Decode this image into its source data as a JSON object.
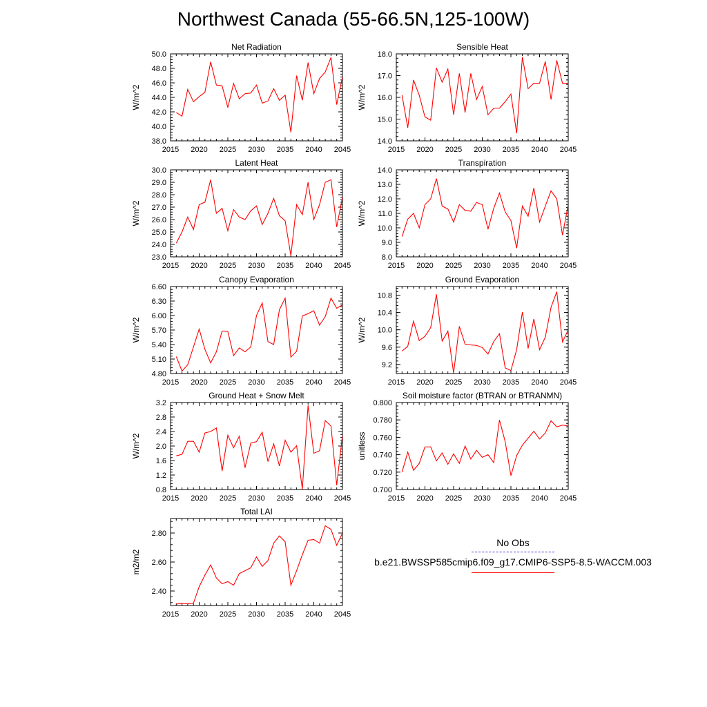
{
  "title": "Northwest Canada (55-66.5N,125-100W)",
  "legend": {
    "obs_label": "No Obs",
    "series_label": "b.e21.BWSSP585cmip6.f09_g17.CMIP6-SSP5-8.5-WACCM.003",
    "obs_color": "#2b2bd0",
    "series_color": "#ff0000"
  },
  "chart_data": [
    {
      "type": "line",
      "title": "Net Radiation",
      "ylabel": "W/m^2",
      "xlim": [
        2015,
        2045
      ],
      "ylim": [
        38.0,
        50.0
      ],
      "yticks": [
        "38.0",
        "40.0",
        "42.0",
        "44.0",
        "46.0",
        "48.0",
        "50.0"
      ],
      "xticks": [
        "2015",
        "2020",
        "2025",
        "2030",
        "2035",
        "2040",
        "2045"
      ],
      "x": [
        2016,
        2017,
        2018,
        2019,
        2020,
        2021,
        2022,
        2023,
        2024,
        2025,
        2026,
        2027,
        2028,
        2029,
        2030,
        2031,
        2032,
        2033,
        2034,
        2035,
        2036,
        2037,
        2038,
        2039,
        2040,
        2041,
        2042,
        2043,
        2044,
        2045
      ],
      "values": [
        41.9,
        41.4,
        45.1,
        43.4,
        44.1,
        44.7,
        48.9,
        45.7,
        45.6,
        42.6,
        45.9,
        43.8,
        44.5,
        44.6,
        45.7,
        43.2,
        43.5,
        45.2,
        43.6,
        44.3,
        39.2,
        47.0,
        43.6,
        48.8,
        44.5,
        46.6,
        47.5,
        49.5,
        43.0,
        46.8
      ],
      "color": "#ff0000"
    },
    {
      "type": "line",
      "title": "Sensible Heat",
      "ylabel": "W/m^2",
      "xlim": [
        2015,
        2045
      ],
      "ylim": [
        14.0,
        18.0
      ],
      "yticks": [
        "14.0",
        "15.0",
        "16.0",
        "17.0",
        "18.0"
      ],
      "xticks": [
        "2015",
        "2020",
        "2025",
        "2030",
        "2035",
        "2040",
        "2045"
      ],
      "x": [
        2016,
        2017,
        2018,
        2019,
        2020,
        2021,
        2022,
        2023,
        2024,
        2025,
        2026,
        2027,
        2028,
        2029,
        2030,
        2031,
        2032,
        2033,
        2034,
        2035,
        2036,
        2037,
        2038,
        2039,
        2040,
        2041,
        2042,
        2043,
        2044,
        2045
      ],
      "values": [
        16.1,
        14.6,
        16.8,
        16.1,
        15.1,
        14.95,
        17.35,
        16.7,
        17.3,
        15.2,
        17.1,
        15.3,
        17.1,
        15.9,
        16.5,
        15.2,
        15.5,
        15.5,
        15.8,
        16.15,
        14.35,
        17.85,
        16.4,
        16.65,
        16.65,
        17.65,
        15.9,
        17.7,
        16.65,
        16.65
      ],
      "color": "#ff0000"
    },
    {
      "type": "line",
      "title": "Latent Heat",
      "ylabel": "W/m^2",
      "xlim": [
        2015,
        2045
      ],
      "ylim": [
        23.0,
        30.0
      ],
      "yticks": [
        "23.0",
        "24.0",
        "25.0",
        "26.0",
        "27.0",
        "28.0",
        "29.0",
        "30.0"
      ],
      "xticks": [
        "2015",
        "2020",
        "2025",
        "2030",
        "2035",
        "2040",
        "2045"
      ],
      "x": [
        2016,
        2017,
        2018,
        2019,
        2020,
        2021,
        2022,
        2023,
        2024,
        2025,
        2026,
        2027,
        2028,
        2029,
        2030,
        2031,
        2032,
        2033,
        2034,
        2035,
        2036,
        2037,
        2038,
        2039,
        2040,
        2041,
        2042,
        2043,
        2044,
        2045
      ],
      "values": [
        24.1,
        25.0,
        26.2,
        25.2,
        27.2,
        27.4,
        29.2,
        26.5,
        26.9,
        25.1,
        26.8,
        26.2,
        26.0,
        26.7,
        27.1,
        25.6,
        26.5,
        27.7,
        26.3,
        25.9,
        23.1,
        27.2,
        26.4,
        29.0,
        26.0,
        27.2,
        29.0,
        29.2,
        25.4,
        27.8
      ],
      "color": "#ff0000"
    },
    {
      "type": "line",
      "title": "Transpiration",
      "ylabel": "W/m^2",
      "xlim": [
        2015,
        2045
      ],
      "ylim": [
        8.0,
        14.0
      ],
      "yticks": [
        "8.0",
        "9.0",
        "10.0",
        "11.0",
        "12.0",
        "13.0",
        "14.0"
      ],
      "xticks": [
        "2015",
        "2020",
        "2025",
        "2030",
        "2035",
        "2040",
        "2045"
      ],
      "x": [
        2016,
        2017,
        2018,
        2019,
        2020,
        2021,
        2022,
        2023,
        2024,
        2025,
        2026,
        2027,
        2028,
        2029,
        2030,
        2031,
        2032,
        2033,
        2034,
        2035,
        2036,
        2037,
        2038,
        2039,
        2040,
        2041,
        2042,
        2043,
        2044,
        2045
      ],
      "values": [
        9.4,
        10.6,
        11.0,
        10.0,
        11.6,
        12.0,
        13.4,
        11.5,
        11.3,
        10.4,
        11.6,
        11.2,
        11.15,
        11.75,
        11.6,
        9.9,
        11.35,
        12.4,
        11.1,
        10.5,
        8.6,
        11.5,
        10.8,
        12.75,
        10.4,
        11.5,
        12.55,
        12.0,
        9.5,
        11.6
      ],
      "color": "#ff0000"
    },
    {
      "type": "line",
      "title": "Canopy Evaporation",
      "ylabel": "W/m^2",
      "xlim": [
        2015,
        2045
      ],
      "ylim": [
        4.8,
        6.6
      ],
      "yticks": [
        "4.80",
        "5.10",
        "5.40",
        "5.70",
        "6.00",
        "6.30",
        "6.60"
      ],
      "xticks": [
        "2015",
        "2020",
        "2025",
        "2030",
        "2035",
        "2040",
        "2045"
      ],
      "x": [
        2016,
        2017,
        2018,
        2019,
        2020,
        2021,
        2022,
        2023,
        2024,
        2025,
        2026,
        2027,
        2028,
        2029,
        2030,
        2031,
        2032,
        2033,
        2034,
        2035,
        2036,
        2037,
        2038,
        2039,
        2040,
        2041,
        2042,
        2043,
        2044,
        2045
      ],
      "values": [
        5.15,
        4.85,
        4.98,
        5.35,
        5.72,
        5.3,
        5.02,
        5.25,
        5.68,
        5.67,
        5.17,
        5.33,
        5.25,
        5.35,
        6.0,
        6.26,
        5.46,
        5.4,
        6.12,
        6.36,
        5.14,
        5.26,
        5.99,
        6.04,
        6.1,
        5.8,
        5.98,
        6.36,
        6.15,
        6.22
      ],
      "color": "#ff0000"
    },
    {
      "type": "line",
      "title": "Ground Evaporation",
      "ylabel": "W/m^2",
      "xlim": [
        2015,
        2045
      ],
      "ylim": [
        8.99,
        11.0
      ],
      "yticks": [
        "9.2",
        "9.6",
        "10.0",
        "10.4",
        "10.8"
      ],
      "ytick_values": [
        9.2,
        9.6,
        10.0,
        10.4,
        10.8
      ],
      "xticks": [
        "2015",
        "2020",
        "2025",
        "2030",
        "2035",
        "2040",
        "2045"
      ],
      "x": [
        2016,
        2017,
        2018,
        2019,
        2020,
        2021,
        2022,
        2023,
        2024,
        2025,
        2026,
        2027,
        2028,
        2029,
        2030,
        2031,
        2032,
        2033,
        2034,
        2035,
        2036,
        2037,
        2038,
        2039,
        2040,
        2041,
        2042,
        2043,
        2044,
        2045
      ],
      "values": [
        9.51,
        9.62,
        10.2,
        9.75,
        9.85,
        10.05,
        10.82,
        9.74,
        9.97,
        9.0,
        10.08,
        9.67,
        9.65,
        9.64,
        9.59,
        9.44,
        9.73,
        9.91,
        9.12,
        9.06,
        9.54,
        10.41,
        9.57,
        10.25,
        9.54,
        9.83,
        10.52,
        10.88,
        9.72,
        10.0
      ],
      "color": "#ff0000"
    },
    {
      "type": "line",
      "title": "Ground Heat + Snow Melt",
      "ylabel": "W/m^2",
      "xlim": [
        2015,
        2045
      ],
      "ylim": [
        0.8,
        3.2
      ],
      "yticks": [
        "0.8",
        "1.2",
        "1.6",
        "2.0",
        "2.4",
        "2.8",
        "3.2"
      ],
      "xticks": [
        "2015",
        "2020",
        "2025",
        "2030",
        "2035",
        "2040",
        "2045"
      ],
      "x": [
        2016,
        2017,
        2018,
        2019,
        2020,
        2021,
        2022,
        2023,
        2024,
        2025,
        2026,
        2027,
        2028,
        2029,
        2030,
        2031,
        2032,
        2033,
        2034,
        2035,
        2036,
        2037,
        2038,
        2039,
        2040,
        2041,
        2042,
        2043,
        2044,
        2045
      ],
      "values": [
        1.73,
        1.77,
        2.13,
        2.13,
        1.83,
        2.36,
        2.4,
        2.5,
        1.31,
        2.3,
        1.95,
        2.27,
        1.4,
        2.08,
        2.12,
        2.38,
        1.57,
        2.06,
        1.45,
        2.16,
        1.83,
        2.01,
        0.81,
        3.12,
        1.8,
        1.87,
        2.7,
        2.55,
        0.92,
        2.3
      ],
      "color": "#ff0000"
    },
    {
      "type": "line",
      "title": "Soil moisture factor (BTRAN or BTRANMN)",
      "ylabel": "unitless",
      "xlim": [
        2015,
        2045
      ],
      "ylim": [
        0.7,
        0.8
      ],
      "yticks": [
        "0.700",
        "0.720",
        "0.740",
        "0.760",
        "0.780",
        "0.800"
      ],
      "xticks": [
        "2015",
        "2020",
        "2025",
        "2030",
        "2035",
        "2040",
        "2045"
      ],
      "x": [
        2016,
        2017,
        2018,
        2019,
        2020,
        2021,
        2022,
        2023,
        2024,
        2025,
        2026,
        2027,
        2028,
        2029,
        2030,
        2031,
        2032,
        2033,
        2034,
        2035,
        2036,
        2037,
        2038,
        2039,
        2040,
        2041,
        2042,
        2043,
        2044,
        2045
      ],
      "values": [
        0.72,
        0.743,
        0.722,
        0.73,
        0.749,
        0.749,
        0.733,
        0.742,
        0.729,
        0.741,
        0.73,
        0.75,
        0.735,
        0.745,
        0.737,
        0.74,
        0.731,
        0.78,
        0.755,
        0.716,
        0.739,
        0.751,
        0.759,
        0.767,
        0.758,
        0.765,
        0.779,
        0.772,
        0.774,
        0.773
      ],
      "color": "#ff0000"
    },
    {
      "type": "line",
      "title": "Total LAI",
      "ylabel": "m2/m2",
      "xlim": [
        2015,
        2045
      ],
      "ylim": [
        2.3,
        2.9
      ],
      "yticks": [
        "2.40",
        "2.60",
        "2.80"
      ],
      "ytick_values": [
        2.4,
        2.6,
        2.8
      ],
      "xticks": [
        "2015",
        "2020",
        "2025",
        "2030",
        "2035",
        "2040",
        "2045"
      ],
      "x": [
        2016,
        2017,
        2018,
        2019,
        2020,
        2021,
        2022,
        2023,
        2024,
        2025,
        2026,
        2027,
        2028,
        2029,
        2030,
        2031,
        2032,
        2033,
        2034,
        2035,
        2036,
        2037,
        2038,
        2039,
        2040,
        2041,
        2042,
        2043,
        2044,
        2045
      ],
      "values": [
        2.31,
        2.315,
        2.312,
        2.316,
        2.43,
        2.51,
        2.58,
        2.49,
        2.45,
        2.465,
        2.44,
        2.52,
        2.54,
        2.56,
        2.635,
        2.57,
        2.61,
        2.73,
        2.78,
        2.74,
        2.44,
        2.54,
        2.65,
        2.75,
        2.755,
        2.73,
        2.85,
        2.825,
        2.715,
        2.8
      ],
      "color": "#ff0000"
    }
  ]
}
